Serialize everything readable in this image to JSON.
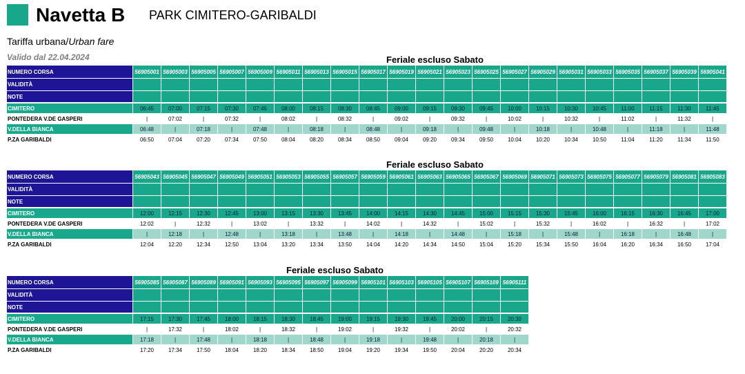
{
  "header": {
    "title": "Navetta B",
    "route": "PARK CIMITERO-GARIBALDI",
    "fare_it": "Tariffa urbana/",
    "fare_en": "Urban fare",
    "valid_from": "Valido dal 22.04.2024"
  },
  "row_labels": {
    "number": "NUMERO CORSA",
    "validity": "VALIDITÀ",
    "note": "NOTE"
  },
  "stops": [
    "CIMITERO",
    "PONTEDERA V.DE GASPERI",
    "V.DELLA BIANCA",
    "P.ZA GARIBALDI"
  ],
  "colors": {
    "brand_green": "#18a78b",
    "header_navy": "#1e1596",
    "light_green": "#9fd7cb"
  },
  "sections": [
    {
      "title": "Feriale escluso Sabato",
      "trips": [
        "56905001",
        "56905003",
        "56905005",
        "56905007",
        "56905009",
        "56905011",
        "56905013",
        "56905015",
        "56905017",
        "56905019",
        "56905021",
        "56905023",
        "56905025",
        "56905027",
        "56905029",
        "56905031",
        "56905033",
        "56905035",
        "56905037",
        "56905039",
        "56905041"
      ],
      "times": [
        [
          "06:45",
          "07:00",
          "07:15",
          "07:30",
          "07:45",
          "08:00",
          "08:15",
          "08:30",
          "08:45",
          "09:00",
          "09:15",
          "09:30",
          "09:45",
          "10:00",
          "10:15",
          "10:30",
          "10:45",
          "11:00",
          "11:15",
          "11:30",
          "11:45"
        ],
        [
          "|",
          "07:02",
          "|",
          "07:32",
          "|",
          "08:02",
          "|",
          "08:32",
          "|",
          "09:02",
          "|",
          "09:32",
          "|",
          "10:02",
          "|",
          "10:32",
          "|",
          "11:02",
          "|",
          "11:32",
          "|"
        ],
        [
          "06:48",
          "|",
          "07:18",
          "|",
          "07:48",
          "|",
          "08:18",
          "|",
          "08:48",
          "|",
          "09:18",
          "|",
          "09:48",
          "|",
          "10:18",
          "|",
          "10:48",
          "|",
          "11:18",
          "|",
          "11:48"
        ],
        [
          "06:50",
          "07:04",
          "07:20",
          "07:34",
          "07:50",
          "08:04",
          "08:20",
          "08:34",
          "08:50",
          "09:04",
          "09:20",
          "09:34",
          "09:50",
          "10:04",
          "10:20",
          "10:34",
          "10:50",
          "11:04",
          "11:20",
          "11:34",
          "11:50"
        ]
      ]
    },
    {
      "title": "Feriale escluso Sabato",
      "trips": [
        "56905043",
        "56905045",
        "56905047",
        "56905049",
        "56905051",
        "56905053",
        "56905055",
        "56905057",
        "56905059",
        "56905061",
        "56905063",
        "56905065",
        "56905067",
        "56905069",
        "56905071",
        "56905073",
        "56905075",
        "56905077",
        "56905079",
        "56905081",
        "56905083"
      ],
      "times": [
        [
          "12:00",
          "12:15",
          "12:30",
          "12:45",
          "13:00",
          "13:15",
          "13:30",
          "13:45",
          "14:00",
          "14:15",
          "14:30",
          "14:45",
          "15:00",
          "15:15",
          "15:30",
          "15:45",
          "16:00",
          "16:15",
          "16:30",
          "16:45",
          "17:00"
        ],
        [
          "12:02",
          "|",
          "12:32",
          "|",
          "13:02",
          "|",
          "13:32",
          "|",
          "14:02",
          "|",
          "14:32",
          "|",
          "15:02",
          "|",
          "15:32",
          "|",
          "16:02",
          "|",
          "16:32",
          "|",
          "17:02"
        ],
        [
          "|",
          "12:18",
          "|",
          "12:48",
          "|",
          "13:18",
          "|",
          "13:48",
          "|",
          "14:18",
          "|",
          "14:48",
          "|",
          "15:18",
          "|",
          "15:48",
          "|",
          "16:18",
          "|",
          "16:48",
          "|"
        ],
        [
          "12:04",
          "12:20",
          "12:34",
          "12:50",
          "13:04",
          "13:20",
          "13:34",
          "13:50",
          "14:04",
          "14:20",
          "14:34",
          "14:50",
          "15:04",
          "15:20",
          "15:34",
          "15:50",
          "16:04",
          "16:20",
          "16:34",
          "16:50",
          "17:04"
        ]
      ]
    },
    {
      "title": "Feriale escluso Sabato",
      "trips": [
        "56905085",
        "56905087",
        "56905089",
        "56905091",
        "56905093",
        "56905095",
        "56905097",
        "56905099",
        "56905101",
        "56905103",
        "56905105",
        "56905107",
        "56905109",
        "56905111"
      ],
      "times": [
        [
          "17:15",
          "17:30",
          "17:45",
          "18:00",
          "18:15",
          "18:30",
          "18:45",
          "19:00",
          "19:15",
          "19:30",
          "19:45",
          "20:00",
          "20:15",
          "20:30"
        ],
        [
          "|",
          "17:32",
          "|",
          "18:02",
          "|",
          "18:32",
          "|",
          "19:02",
          "|",
          "19:32",
          "|",
          "20:02",
          "|",
          "20:32"
        ],
        [
          "17:18",
          "|",
          "17:48",
          "|",
          "18:18",
          "|",
          "18:48",
          "|",
          "19:18",
          "|",
          "19:48",
          "|",
          "20:18",
          "|"
        ],
        [
          "17:20",
          "17:34",
          "17:50",
          "18:04",
          "18:20",
          "18:34",
          "18:50",
          "19:04",
          "19:20",
          "19:34",
          "19:50",
          "20:04",
          "20:20",
          "20:34"
        ]
      ]
    }
  ]
}
